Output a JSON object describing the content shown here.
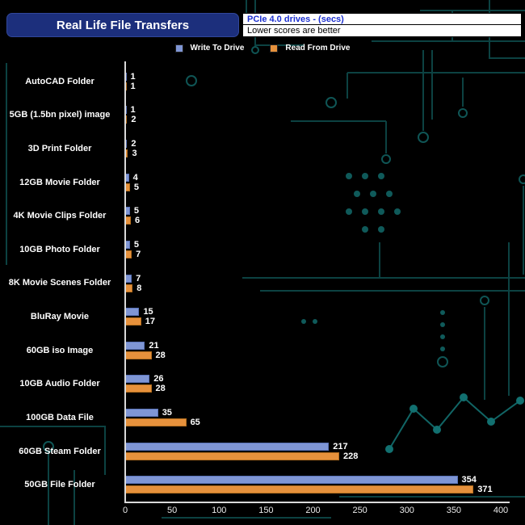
{
  "header": {
    "title": "Real Life File Transfers",
    "subtitle": "PCIe 4.0 drives - (secs)",
    "note": "Lower scores are better"
  },
  "chart_data": {
    "type": "bar",
    "orientation": "horizontal",
    "title": "Real Life File Transfers",
    "subtitle": "PCIe 4.0 drives - (secs)",
    "note": "Lower scores are better",
    "categories": [
      "AutoCAD Folder",
      "5GB (1.5bn pixel) image",
      "3D Print Folder",
      "12GB Movie Folder",
      "4K Movie Clips Folder",
      "10GB Photo Folder",
      "8K Movie Scenes Folder",
      "BluRay Movie",
      "60GB iso Image",
      "10GB Audio Folder",
      "100GB Data File",
      "60GB Steam Folder",
      "50GB File Folder"
    ],
    "series": [
      {
        "name": "Write To Drive",
        "color": "#7f96d5",
        "border": "#5a73b8",
        "values": [
          1,
          1,
          2,
          4,
          5,
          5,
          7,
          15,
          21,
          26,
          35,
          217,
          354
        ]
      },
      {
        "name": "Read From Drive",
        "color": "#e6913c",
        "border": "#b56f1f",
        "values": [
          1,
          2,
          3,
          5,
          6,
          7,
          8,
          17,
          28,
          28,
          65,
          228,
          371
        ]
      }
    ],
    "xlim": [
      0,
      400
    ],
    "xticks": [
      0,
      50,
      100,
      150,
      200,
      250,
      300,
      350,
      400
    ],
    "legend_position": "top",
    "value_labels": true,
    "background": "#000000",
    "circuit_trace_color": "#0d4545"
  }
}
